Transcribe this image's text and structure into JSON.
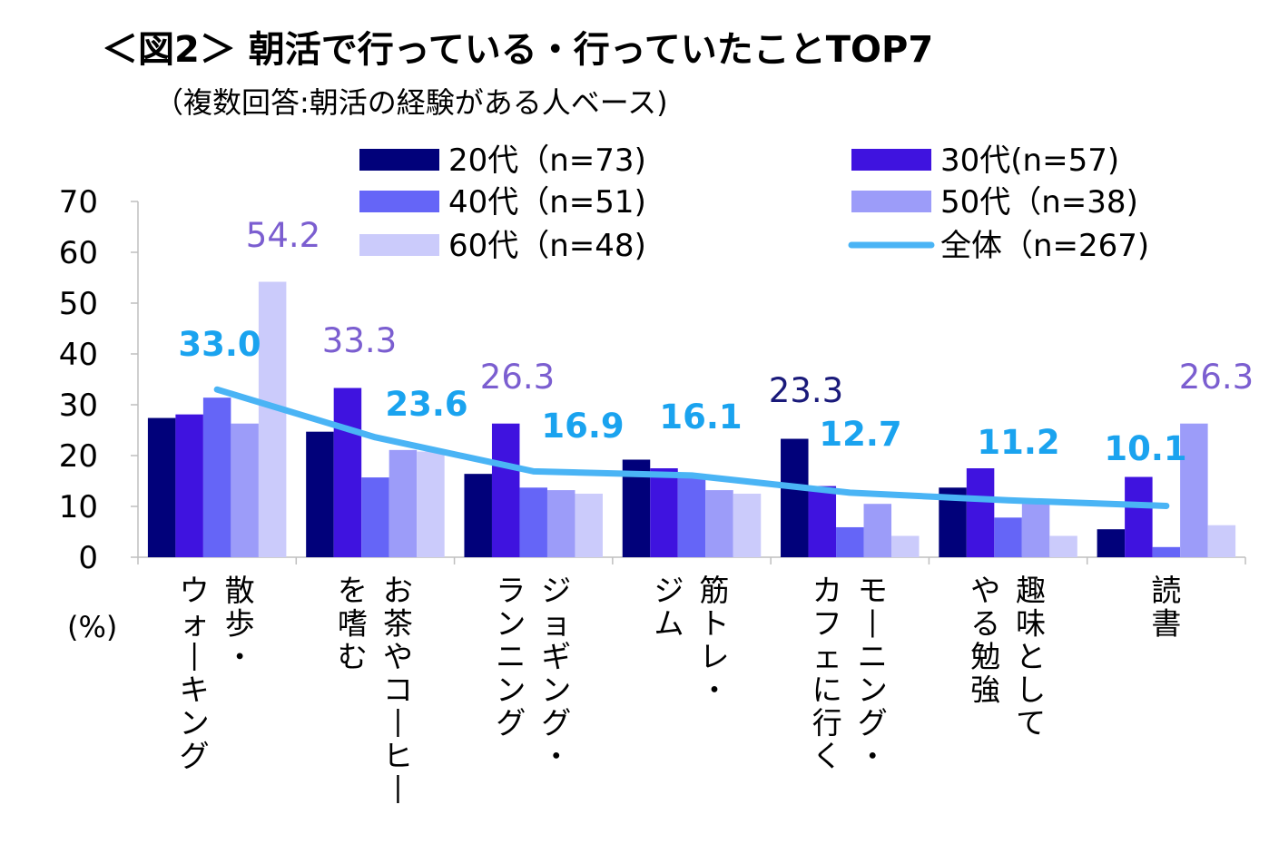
{
  "title": "＜図2＞ 朝活で行っている・行っていたことTOP7",
  "subtitle": "（複数回答:朝活の経験がある人ベース)",
  "unit_label": "(%)",
  "colors": {
    "s20": "#01017a",
    "s30": "#3f13df",
    "s40": "#6565f7",
    "s50": "#9c9cf9",
    "s60": "#cbcbfb",
    "total": "#4ab4f5",
    "total_label": "#1aa3ef",
    "label_50": "#7b5ed0",
    "label_60": "#7b5ed0",
    "label_20": "#1a1a7a"
  },
  "chart_data": {
    "type": "bar",
    "title": "＜図2＞ 朝活で行っている・行っていたことTOP7",
    "ylabel": "(%)",
    "ylim": [
      0,
      70
    ],
    "yticks": [
      "0",
      "10",
      "20",
      "30",
      "40",
      "50",
      "60",
      "70"
    ],
    "categories": [
      [
        "散歩・",
        "ウォーキング"
      ],
      [
        "お茶やコーヒー",
        "を嗜む"
      ],
      [
        "ジョギング・",
        "ランニング"
      ],
      [
        "筋トレ・",
        "ジム"
      ],
      [
        "モーニング・",
        "カフェに行く"
      ],
      [
        "趣味として",
        "やる勉強"
      ],
      [
        "読書"
      ]
    ],
    "series": [
      {
        "name": "20代（n=73)",
        "values": [
          27.4,
          24.7,
          16.4,
          19.2,
          23.3,
          13.7,
          5.5
        ]
      },
      {
        "name": "30代(n=57)",
        "values": [
          28.1,
          33.3,
          26.3,
          17.5,
          14.0,
          17.5,
          15.8
        ]
      },
      {
        "name": "40代（n=51)",
        "values": [
          31.4,
          15.7,
          13.7,
          15.7,
          5.9,
          7.8,
          2.0
        ]
      },
      {
        "name": "50代（n=38)",
        "values": [
          26.3,
          21.1,
          13.2,
          13.2,
          10.5,
          10.5,
          26.3
        ]
      },
      {
        "name": "60代（n=48)",
        "values": [
          54.2,
          20.8,
          12.5,
          12.5,
          4.2,
          4.2,
          6.3
        ]
      }
    ],
    "total_series": {
      "name": "全体（n=267)",
      "values": [
        33.0,
        23.6,
        16.9,
        16.1,
        12.7,
        11.2,
        10.1
      ]
    },
    "total_labels": [
      "33.0",
      "23.6",
      "16.9",
      "16.1",
      "12.7",
      "11.2",
      "10.1"
    ],
    "highlight_labels": [
      {
        "category": 0,
        "series": 4,
        "text": "54.2"
      },
      {
        "category": 1,
        "series": 1,
        "text": "33.3"
      },
      {
        "category": 2,
        "series": 1,
        "text": "26.3"
      },
      {
        "category": 4,
        "series": 0,
        "text": "23.3"
      },
      {
        "category": 6,
        "series": 3,
        "text": "26.3"
      }
    ],
    "legend_position": "top"
  }
}
